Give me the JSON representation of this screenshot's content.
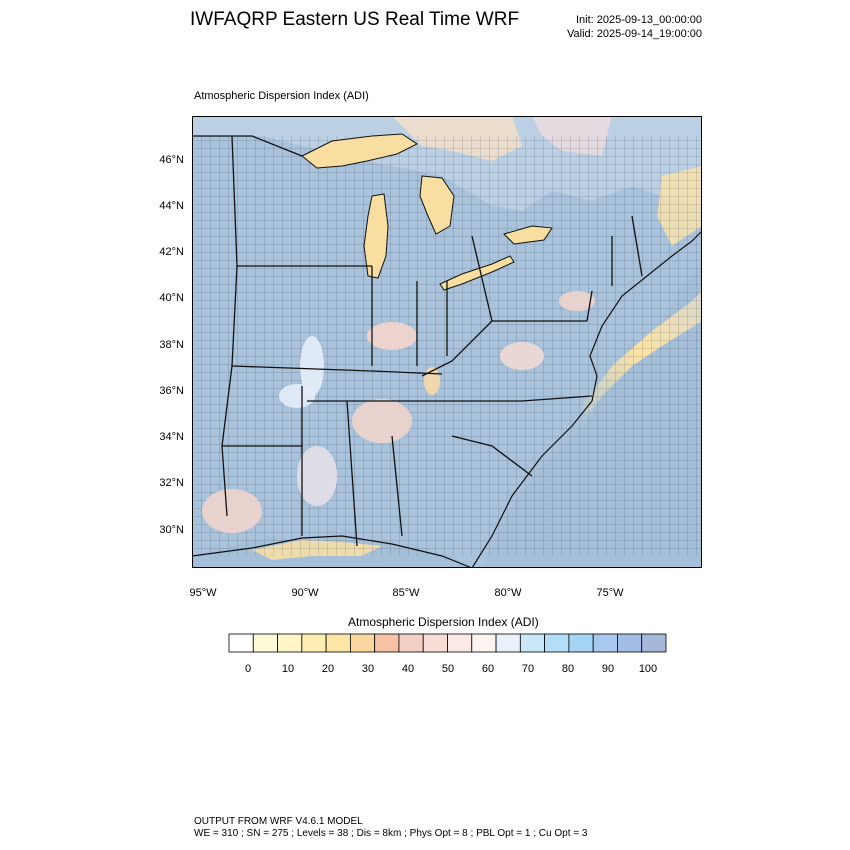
{
  "header": {
    "title": "IWFAQRP Eastern US Real Time WRF",
    "init": "Init: 2025-09-13_00:00:00",
    "valid": "Valid: 2025-09-14_19:00:00"
  },
  "map": {
    "subtitle": "Atmospheric Dispersion Index   (ADI)",
    "lat_labels": [
      "46°N",
      "44°N",
      "42°N",
      "40°N",
      "38°N",
      "36°N",
      "34°N",
      "32°N",
      "30°N"
    ],
    "lon_labels": [
      "95°W",
      "90°W",
      "85°W",
      "80°W",
      "75°W"
    ],
    "colors": {
      "land_background": "#a9c3dc",
      "ocean": "#a4bfd8",
      "lake": "#f8dea0",
      "high_plume": "#fde6a8",
      "low_adi_spot": "#f4d6cc",
      "borders": "#111111"
    }
  },
  "colorbar": {
    "title": "Atmospheric Dispersion Index  (ADI)",
    "labels": [
      "0",
      "10",
      "20",
      "30",
      "40",
      "50",
      "60",
      "70",
      "80",
      "90",
      "100"
    ],
    "colors": [
      "#ffffff",
      "#fffbd8",
      "#fff5c6",
      "#ffeeb3",
      "#fde6a8",
      "#fbd7a0",
      "#f6c1a4",
      "#f4cfc4",
      "#f8dcd6",
      "#fbe9e6",
      "#fdf4f2",
      "#e9f2fb",
      "#cbe6f7",
      "#b2def7",
      "#a5d4f5",
      "#a9c8ee",
      "#a3bde6",
      "#a6b8d8"
    ]
  },
  "footer": {
    "line1": "OUTPUT FROM WRF V4.6.1 MODEL",
    "line2": "WE = 310 ; SN = 275 ; Levels = 38 ; Dis = 8km ; Phys Opt = 8 ; PBL Opt = 1 ; Cu Opt = 3"
  }
}
